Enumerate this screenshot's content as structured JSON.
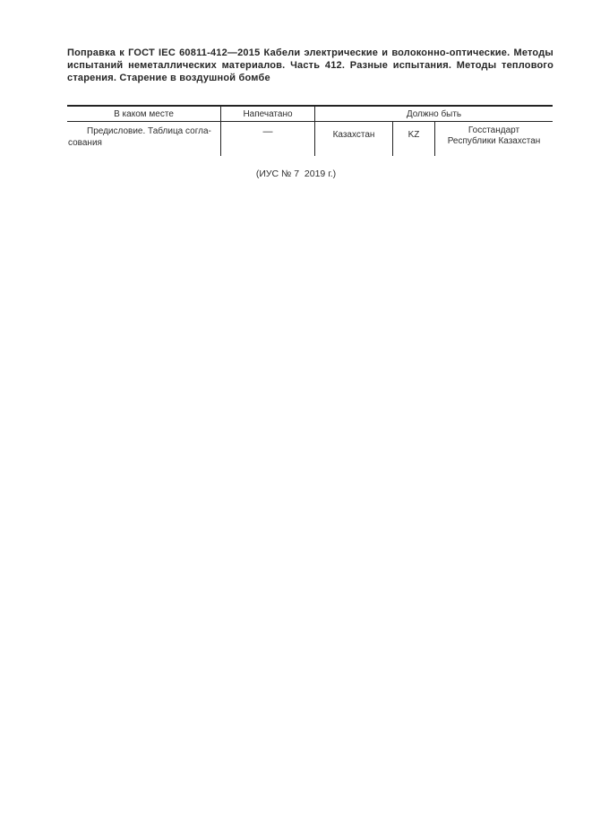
{
  "document": {
    "header": "Поправка к ГОСТ IEC 60811-412—2015 Кабели электрические и волоконно-оптические. Методы испытаний неметаллических материалов. Часть 412. Разные испытания. Методы теплового старения. Старение в воздушной бомбе",
    "source_note": "(ИУС № 7  2019 г.)"
  },
  "table": {
    "columns": [
      "В каком месте",
      "Напечатано",
      "Должно быть"
    ],
    "row": {
      "location": "Предисловие. Таблица согла­сования",
      "printed": "—",
      "corrected": {
        "country": "Казахстан",
        "code": "KZ",
        "body": "Госстандарт Республики Казахстан"
      }
    }
  }
}
